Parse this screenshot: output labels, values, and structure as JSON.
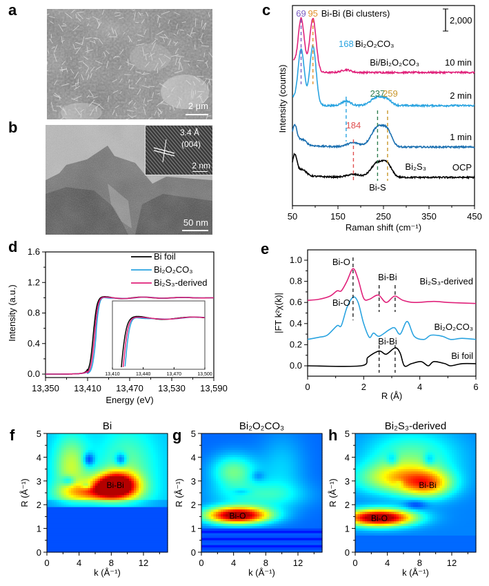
{
  "panels": {
    "a": {
      "label": "a",
      "scale_bar": "2 μm",
      "kind": "SEM image"
    },
    "b": {
      "label": "b",
      "scale_bar": "50 nm",
      "inset": {
        "spacing": "3.4 Å",
        "plane": "(004)",
        "scale_bar": "2 nm"
      },
      "kind": "TEM image"
    },
    "c": {
      "label": "c"
    },
    "d": {
      "label": "d"
    },
    "e": {
      "label": "e"
    },
    "f": {
      "label": "f"
    },
    "g": {
      "label": "g"
    },
    "h": {
      "label": "h"
    }
  },
  "colors": {
    "pink": "#e0217a",
    "light_blue": "#29a3e0",
    "blue": "#1a6fb0",
    "black": "#000000",
    "purple": "#7a5cc0",
    "orange": "#e0902a",
    "green": "#2e7d4f",
    "gold": "#c9962a",
    "red": "#e05050"
  },
  "chart_data": [
    {
      "id": "c",
      "type": "line",
      "title": "",
      "xlabel": "Raman shift  (cm⁻¹)",
      "ylabel": "Intensity (counts)",
      "xlim": [
        50,
        450
      ],
      "xticks": [
        50,
        150,
        250,
        350,
        450
      ],
      "scale_bar_label": "2,000",
      "series": [
        {
          "name": "10 min",
          "label": "10 min",
          "phase": "Bi/Bi₂O₂CO₃",
          "color": "#e0217a",
          "offset": 3,
          "peaks": [
            [
              69,
              1.0
            ],
            [
              95,
              1.0
            ],
            [
              168,
              0.05
            ]
          ],
          "baseline": 0
        },
        {
          "name": "2 min",
          "label": "2 min",
          "color": "#29a3e0",
          "offset": 2,
          "peaks": [
            [
              69,
              1.0
            ],
            [
              95,
              1.05
            ],
            [
              168,
              0.08
            ],
            [
              237,
              0.15
            ],
            [
              259,
              0.08
            ]
          ],
          "baseline": 0
        },
        {
          "name": "1 min",
          "label": "1 min",
          "color": "#1a6fb0",
          "offset": 1,
          "peaks": [
            [
              55,
              0.35
            ],
            [
              72,
              0.1
            ],
            [
              184,
              0.08
            ],
            [
              237,
              0.38
            ],
            [
              259,
              0.25
            ]
          ],
          "baseline": 0
        },
        {
          "name": "OCP",
          "label": "OCP",
          "phase": "Bi₂S₃",
          "color": "#000000",
          "offset": 0,
          "peaks": [
            [
              55,
              0.4
            ],
            [
              72,
              0.12
            ],
            [
              184,
              0.06
            ],
            [
              237,
              0.3
            ],
            [
              259,
              0.22
            ]
          ],
          "baseline": 0
        }
      ],
      "annotations": [
        {
          "text": "69",
          "x": 69,
          "color": "#7a5cc0"
        },
        {
          "text": "95",
          "x": 95,
          "color": "#e0902a"
        },
        {
          "text": "Bi-Bi (Bi clusters)",
          "color": "#000000"
        },
        {
          "text": "168",
          "x": 168,
          "color": "#29a3e0"
        },
        {
          "text": "Bi₂O₂CO₃",
          "color": "#000000"
        },
        {
          "text": "237",
          "x": 237,
          "color": "#2e7d4f"
        },
        {
          "text": "259",
          "x": 259,
          "color": "#c9962a"
        },
        {
          "text": "184",
          "x": 184,
          "color": "#e05050"
        },
        {
          "text": "Bi-S",
          "color": "#000000"
        }
      ]
    },
    {
      "id": "d",
      "type": "line",
      "xlabel": "Energy (eV)",
      "ylabel": "Intensity (a.u.)",
      "xlim": [
        13350,
        13590
      ],
      "ylim": [
        0,
        1.6
      ],
      "xticks": [
        "13,350",
        "13,410",
        "13,470",
        "13,530",
        "13,590"
      ],
      "yticks": [
        "0.0",
        "0.4",
        "0.8",
        "1.2",
        "1.6"
      ],
      "legend": "top-right",
      "series": [
        {
          "name": "Bi foil",
          "color": "#000000",
          "edge": 13418,
          "white_line": 1.0
        },
        {
          "name": "Bi₂O₂CO₃",
          "color": "#29a3e0",
          "edge": 13422,
          "white_line": 1.09
        },
        {
          "name": "Bi₂S₃-derived",
          "color": "#e0217a",
          "edge": 13420,
          "white_line": 1.04
        }
      ],
      "inset": {
        "xlim": [
          13410,
          13500
        ],
        "xticks": [
          "13,410",
          "13,440",
          "13,470",
          "13,500"
        ]
      }
    },
    {
      "id": "e",
      "type": "line",
      "xlabel": "R (Å)",
      "ylabel": "|FT k²χ(k)|",
      "xlim": [
        0,
        6
      ],
      "ylim": [
        -0.1,
        1.05
      ],
      "xticks": [
        "0",
        "2",
        "4",
        "6"
      ],
      "yticks": [
        "0.0",
        "0.2",
        "0.4",
        "0.6",
        "0.8",
        "1.0"
      ],
      "series": [
        {
          "name": "Bi₂S₃-derived",
          "color": "#e0217a",
          "points": [
            [
              0,
              0.62
            ],
            [
              0.4,
              0.63
            ],
            [
              0.8,
              0.66
            ],
            [
              1.05,
              0.71
            ],
            [
              1.2,
              0.71
            ],
            [
              1.4,
              0.8
            ],
            [
              1.62,
              0.92
            ],
            [
              1.8,
              0.82
            ],
            [
              2.0,
              0.64
            ],
            [
              2.2,
              0.63
            ],
            [
              2.52,
              0.67
            ],
            [
              2.8,
              0.6
            ],
            [
              3.1,
              0.66
            ],
            [
              3.4,
              0.62
            ],
            [
              3.8,
              0.6
            ],
            [
              4.5,
              0.61
            ],
            [
              5,
              0.6
            ],
            [
              6,
              0.59
            ]
          ]
        },
        {
          "name": "Bi₂O₂CO₃",
          "color": "#29a3e0",
          "points": [
            [
              0,
              0.25
            ],
            [
              0.4,
              0.27
            ],
            [
              0.7,
              0.29
            ],
            [
              1.05,
              0.38
            ],
            [
              1.2,
              0.38
            ],
            [
              1.4,
              0.55
            ],
            [
              1.62,
              0.65
            ],
            [
              1.8,
              0.6
            ],
            [
              2.0,
              0.4
            ],
            [
              2.2,
              0.27
            ],
            [
              2.35,
              0.31
            ],
            [
              2.55,
              0.28
            ],
            [
              2.9,
              0.34
            ],
            [
              3.1,
              0.36
            ],
            [
              3.3,
              0.3
            ],
            [
              3.55,
              0.42
            ],
            [
              3.8,
              0.28
            ],
            [
              4.15,
              0.25
            ],
            [
              4.4,
              0.29
            ],
            [
              4.8,
              0.28
            ],
            [
              5.1,
              0.25
            ],
            [
              5.5,
              0.26
            ],
            [
              6,
              0.25
            ]
          ]
        },
        {
          "name": "Bi foil",
          "color": "#000000",
          "points": [
            [
              0,
              0.0
            ],
            [
              1.9,
              0.0
            ],
            [
              2.15,
              0.08
            ],
            [
              2.55,
              0.14
            ],
            [
              2.8,
              0.11
            ],
            [
              3.12,
              0.17
            ],
            [
              3.3,
              0.12
            ],
            [
              3.45,
              0.0
            ],
            [
              3.7,
              0.02
            ],
            [
              4.05,
              0.04
            ],
            [
              4.3,
              0.0
            ],
            [
              4.5,
              0.04
            ],
            [
              4.9,
              0.02
            ],
            [
              5.1,
              0.0
            ],
            [
              5.5,
              0.02
            ],
            [
              6,
              0.02
            ]
          ]
        }
      ],
      "annotations": [
        {
          "text": "Bi-O",
          "x": 1.62
        },
        {
          "text": "Bi-Bi",
          "x": 2.55
        },
        {
          "text": "Bi-O",
          "x": 1.62
        },
        {
          "text": "Bi-Bi",
          "x": 2.55
        }
      ]
    },
    {
      "id": "f",
      "type": "heatmap",
      "title": "Bi",
      "xlabel": "k (Å⁻¹)",
      "ylabel": "R (Å⁻¹)",
      "xlim": [
        0,
        15
      ],
      "ylim": [
        0,
        5
      ],
      "xticks": [
        "0",
        "4",
        "8",
        "12"
      ],
      "yticks": [
        "0",
        "1",
        "2",
        "3",
        "4",
        "5"
      ],
      "features": [
        {
          "label": "Bi-Bi",
          "k": 8.5,
          "R": 2.85,
          "intensity": 1.0
        }
      ]
    },
    {
      "id": "g",
      "type": "heatmap",
      "title": "Bi₂O₂CO₃",
      "xlabel": "k (Å⁻¹)",
      "ylabel": "R (Å⁻¹)",
      "xlim": [
        0,
        15
      ],
      "ylim": [
        0,
        5
      ],
      "xticks": [
        "0",
        "4",
        "8",
        "12"
      ],
      "yticks": [
        "0",
        "1",
        "2",
        "3",
        "4",
        "5"
      ],
      "features": [
        {
          "label": "Bi-O",
          "k": 4.5,
          "R": 1.55,
          "intensity": 1.0
        },
        {
          "label": "",
          "k": 4,
          "R": 3.4,
          "intensity": 0.4
        }
      ]
    },
    {
      "id": "h",
      "type": "heatmap",
      "title": "Bi₂S₃-derived",
      "xlabel": "k (Å⁻¹)",
      "ylabel": "R (Å⁻¹)",
      "xlim": [
        0,
        15
      ],
      "ylim": [
        0,
        5
      ],
      "xticks": [
        "0",
        "4",
        "8",
        "12"
      ],
      "yticks": [
        "0",
        "1",
        "2",
        "3",
        "4",
        "5"
      ],
      "features": [
        {
          "label": "Bi-O",
          "k": 3,
          "R": 1.45,
          "intensity": 1.0
        },
        {
          "label": "Bi-Bi",
          "k": 9,
          "R": 2.85,
          "intensity": 0.5
        }
      ]
    }
  ]
}
